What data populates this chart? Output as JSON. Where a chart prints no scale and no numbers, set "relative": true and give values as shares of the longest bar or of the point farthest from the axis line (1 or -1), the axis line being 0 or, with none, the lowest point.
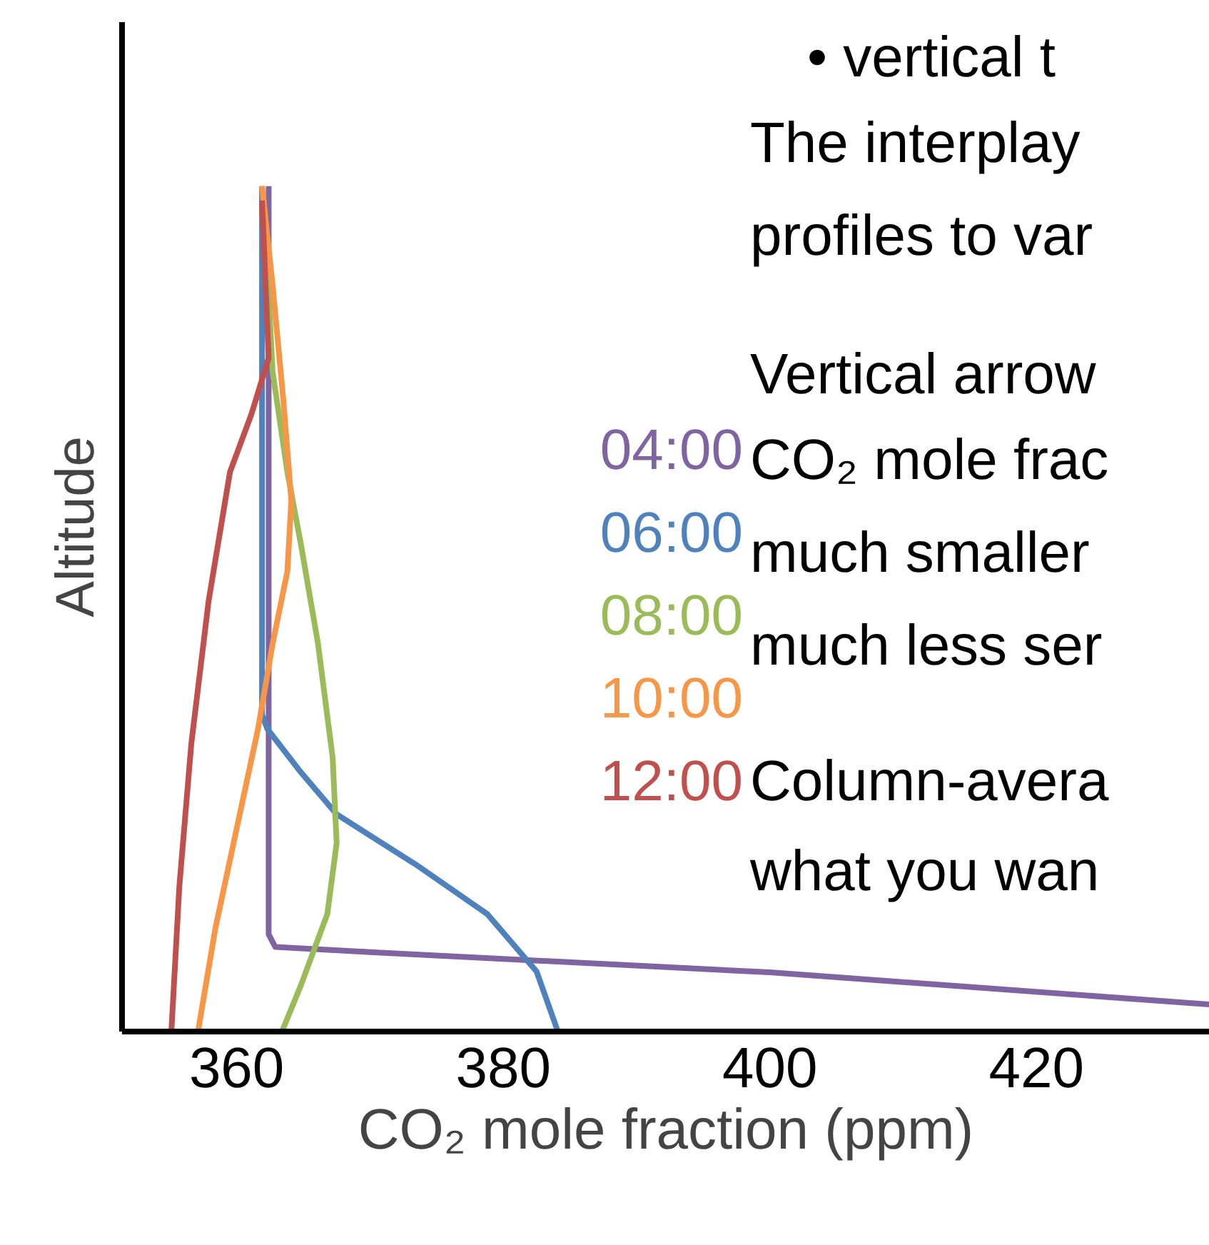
{
  "chart_data": {
    "type": "line",
    "relative": true,
    "xlabel": "CO₂ mole fraction (ppm)",
    "ylabel": "Altitude",
    "xlim": [
      351.4,
      433
    ],
    "xticks": [
      360,
      380,
      400,
      420
    ],
    "grid": false,
    "legend": "center",
    "marker": "none",
    "line_style": "solid",
    "series": [
      {
        "name": "04:00",
        "color": "#8064a2",
        "x": [
          362.4,
          362.4,
          362.4,
          362.9,
          370,
          400,
          433
        ],
        "values": [
          1,
          0.5,
          0.115,
          0.1,
          0.094,
          0.07,
          0.032
        ]
      },
      {
        "name": "06:00",
        "color": "#4f81bd",
        "x": [
          361.9,
          361.9,
          362.3,
          364.8,
          367.5,
          373.4,
          378.8,
          382.5,
          384.1
        ],
        "values": [
          1,
          0.375,
          0.358,
          0.307,
          0.257,
          0.198,
          0.139,
          0.071,
          0
        ]
      },
      {
        "name": "08:00",
        "color": "#9bbb59",
        "x": [
          362.0,
          362.7,
          363.8,
          364.8,
          366.1,
          367.2,
          367.5,
          366.8,
          364.8,
          363.4
        ],
        "values": [
          0.99,
          0.78,
          0.662,
          0.578,
          0.459,
          0.324,
          0.223,
          0.139,
          0.054,
          0
        ]
      },
      {
        "name": "10:00",
        "color": "#f79646",
        "x": [
          361.9,
          362.7,
          363.5,
          364.1,
          363.8,
          362.7,
          361.6,
          360,
          358.4,
          357.1
        ],
        "values": [
          1,
          0.882,
          0.747,
          0.628,
          0.544,
          0.459,
          0.358,
          0.24,
          0.122,
          0
        ]
      },
      {
        "name": "12:00",
        "color": "#c0504d",
        "x": [
          361.9,
          362.4,
          361.1,
          359.5,
          357.9,
          356.6,
          355.7,
          355.1
        ],
        "values": [
          0.983,
          0.797,
          0.73,
          0.662,
          0.51,
          0.341,
          0.172,
          0
        ]
      }
    ],
    "annotations": [
      "• vertical t",
      "The interplay",
      "profiles to var",
      "Vertical arrow",
      "CO₂ mole frac",
      "much smaller",
      "much less ser",
      "Column-avera",
      "what you wan"
    ]
  }
}
